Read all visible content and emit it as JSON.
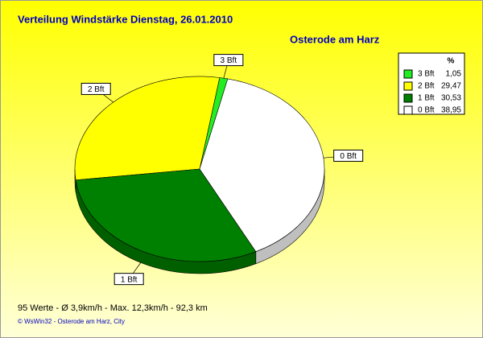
{
  "chart_data": {
    "type": "pie",
    "title": "Verteilung Windstärke  Dienstag, 26.01.2010",
    "subtitle": "Osterode am Harz",
    "categories": [
      "3 Bft",
      "2 Bft",
      "1 Bft",
      "0 Bft"
    ],
    "values": [
      1.05,
      29.47,
      30.53,
      38.95
    ],
    "value_labels": [
      "1,05",
      "29,47",
      "30,53",
      "38,95"
    ],
    "colors": [
      "#22ee22",
      "#ffff00",
      "#008000",
      "#ffffff"
    ],
    "legend_header": "%",
    "legend": "top-right",
    "footer": "95 Werte   -   Ø 3,9km/h  -  Max. 12,3km/h   -   92,3 km",
    "credit": "© WsWin32  -  Osterode am Harz, City"
  }
}
